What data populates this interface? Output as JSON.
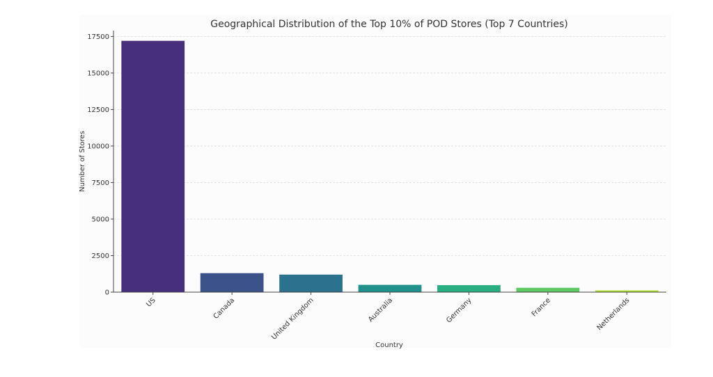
{
  "chart_data": {
    "type": "bar",
    "title": "Geographical Distribution of the Top 10% of POD Stores (Top 7 Countries)",
    "xlabel": "Country",
    "ylabel": "Number of Stores",
    "categories": [
      "US",
      "Canada",
      "United Kingdom",
      "Australia",
      "Germany",
      "France",
      "Netherlands"
    ],
    "values": [
      17200,
      1300,
      1200,
      500,
      480,
      300,
      120
    ],
    "ylim": [
      0,
      17900
    ],
    "yticks": [
      0,
      2500,
      5000,
      7500,
      10000,
      12500,
      15000,
      17500
    ],
    "grid": "horizontal dashed",
    "colors": [
      "#472f7d",
      "#3b528b",
      "#2c728e",
      "#21918c",
      "#28ae80",
      "#5ec962",
      "#addc30"
    ]
  }
}
